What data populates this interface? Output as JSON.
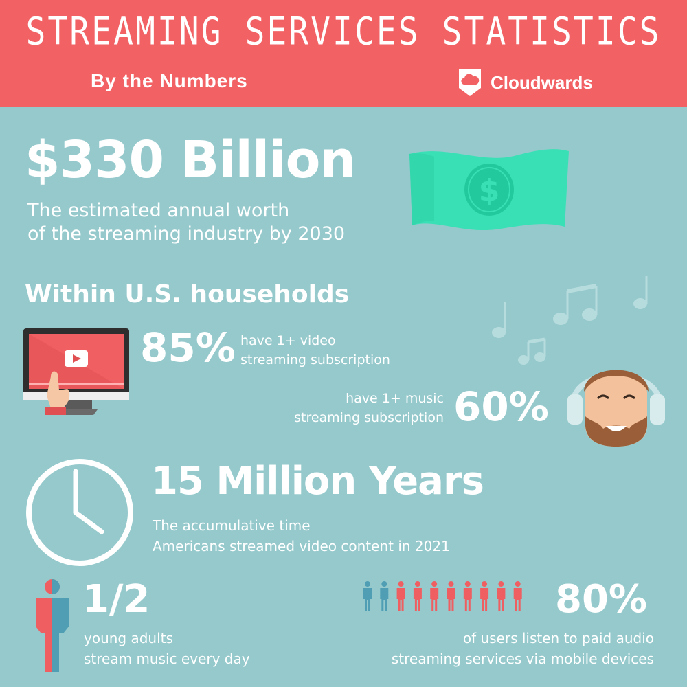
{
  "header": {
    "title": "STREAMING SERVICES STATISTICS",
    "subtitle": "By the Numbers",
    "brand": "Cloudwards"
  },
  "colors": {
    "background": "#95c9cc",
    "header": "#f26164",
    "accent_red": "#ef5f62",
    "accent_blue": "#4f9eb4",
    "money_green": "#3ae0b5"
  },
  "stats": {
    "industry": {
      "value": "$330 Billion",
      "line1": "The estimated annual worth",
      "line2": "of the streaming industry by 2030"
    },
    "households": {
      "title": "Within U.S. households",
      "video": {
        "value": "85%",
        "line1": "have 1+ video",
        "line2": "streaming subscription"
      },
      "music": {
        "value": "60%",
        "line1": "have 1+ music",
        "line2": "streaming subscription"
      }
    },
    "time": {
      "value": "15 Million Years",
      "line1": "The accumulative time",
      "line2": "Americans streamed video content in 2021"
    },
    "young_adults": {
      "value": "1/2",
      "line1": "young adults",
      "line2": "stream music every day"
    },
    "mobile": {
      "value": "80%",
      "line1": "of users listen to paid audio",
      "line2": "streaming services via mobile devices",
      "people_total": 10,
      "people_highlighted": 8
    }
  },
  "icons": {
    "brand_logo": "cloud-shield-icon",
    "money": "dollar-bill-icon",
    "monitor": "video-monitor-icon",
    "notes": "music-notes-icon",
    "listener": "headphones-man-icon",
    "clock": "clock-icon",
    "half_person": "half-person-icon",
    "people_row": "person-row-icon"
  }
}
